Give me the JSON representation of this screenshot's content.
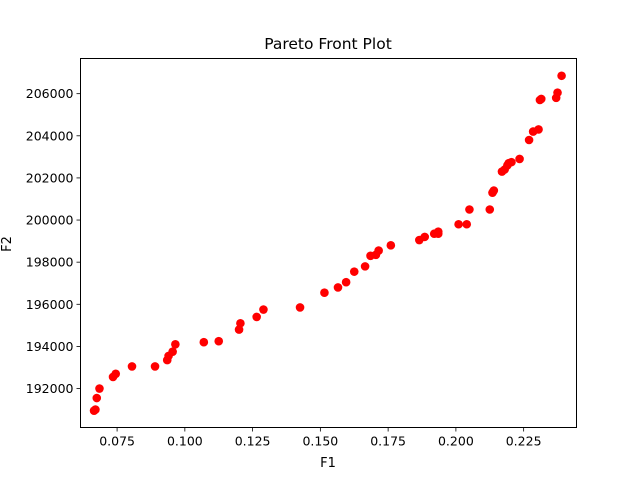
{
  "chart_data": {
    "type": "scatter",
    "title": "Pareto Front Plot",
    "xlabel": "F1",
    "ylabel": "F2",
    "xlim": [
      0.0615,
      0.2445
    ],
    "ylim": [
      190150,
      207670
    ],
    "x_ticks": [
      0.075,
      0.1,
      0.125,
      0.15,
      0.175,
      0.2,
      0.225
    ],
    "x_tick_labels": [
      "0.075",
      "0.100",
      "0.125",
      "0.150",
      "0.175",
      "0.200",
      "0.225"
    ],
    "y_ticks": [
      192000,
      194000,
      196000,
      198000,
      200000,
      202000,
      204000,
      206000
    ],
    "y_tick_labels": [
      "192000",
      "194000",
      "196000",
      "198000",
      "200000",
      "202000",
      "204000",
      "206000"
    ],
    "grid": false,
    "marker_color": "#ff0000",
    "points": [
      {
        "x": 0.0665,
        "y": 190950
      },
      {
        "x": 0.067,
        "y": 191000
      },
      {
        "x": 0.0675,
        "y": 191550
      },
      {
        "x": 0.0685,
        "y": 192000
      },
      {
        "x": 0.0735,
        "y": 192550
      },
      {
        "x": 0.0745,
        "y": 192700
      },
      {
        "x": 0.0805,
        "y": 193050
      },
      {
        "x": 0.089,
        "y": 193050
      },
      {
        "x": 0.0935,
        "y": 193350
      },
      {
        "x": 0.094,
        "y": 193550
      },
      {
        "x": 0.0955,
        "y": 193750
      },
      {
        "x": 0.0965,
        "y": 194100
      },
      {
        "x": 0.107,
        "y": 194200
      },
      {
        "x": 0.1125,
        "y": 194250
      },
      {
        "x": 0.12,
        "y": 194800
      },
      {
        "x": 0.1205,
        "y": 195100
      },
      {
        "x": 0.1265,
        "y": 195400
      },
      {
        "x": 0.129,
        "y": 195750
      },
      {
        "x": 0.1425,
        "y": 195850
      },
      {
        "x": 0.1515,
        "y": 196550
      },
      {
        "x": 0.1565,
        "y": 196800
      },
      {
        "x": 0.1595,
        "y": 197050
      },
      {
        "x": 0.1625,
        "y": 197550
      },
      {
        "x": 0.1665,
        "y": 197800
      },
      {
        "x": 0.1685,
        "y": 198300
      },
      {
        "x": 0.1705,
        "y": 198350
      },
      {
        "x": 0.1715,
        "y": 198550
      },
      {
        "x": 0.176,
        "y": 198800
      },
      {
        "x": 0.1865,
        "y": 199050
      },
      {
        "x": 0.1885,
        "y": 199200
      },
      {
        "x": 0.192,
        "y": 199350
      },
      {
        "x": 0.1935,
        "y": 199450
      },
      {
        "x": 0.1935,
        "y": 199350
      },
      {
        "x": 0.201,
        "y": 199800
      },
      {
        "x": 0.204,
        "y": 199800
      },
      {
        "x": 0.205,
        "y": 200500
      },
      {
        "x": 0.2125,
        "y": 200500
      },
      {
        "x": 0.2135,
        "y": 201300
      },
      {
        "x": 0.214,
        "y": 201400
      },
      {
        "x": 0.217,
        "y": 202300
      },
      {
        "x": 0.218,
        "y": 202400
      },
      {
        "x": 0.219,
        "y": 202600
      },
      {
        "x": 0.2195,
        "y": 202700
      },
      {
        "x": 0.2205,
        "y": 202750
      },
      {
        "x": 0.2235,
        "y": 202900
      },
      {
        "x": 0.227,
        "y": 203800
      },
      {
        "x": 0.2285,
        "y": 204200
      },
      {
        "x": 0.2305,
        "y": 204300
      },
      {
        "x": 0.231,
        "y": 205700
      },
      {
        "x": 0.2315,
        "y": 205750
      },
      {
        "x": 0.237,
        "y": 205800
      },
      {
        "x": 0.2375,
        "y": 206050
      },
      {
        "x": 0.239,
        "y": 206850
      }
    ]
  }
}
